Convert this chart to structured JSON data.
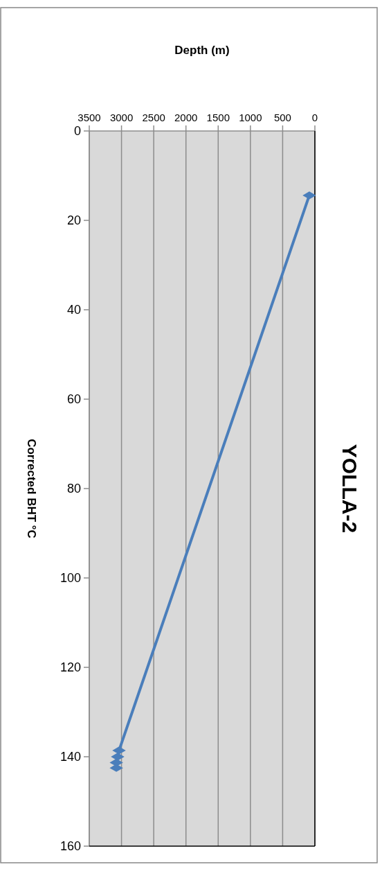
{
  "chart_data": {
    "type": "line",
    "title": "YOLLA-2",
    "xlabel": "Depth (m)",
    "ylabel": "Corrected BHT °C",
    "x": [
      86,
      3038,
      3060,
      3080,
      3080
    ],
    "series": [
      {
        "color": "#4a7ebb",
        "values": [
          14.4,
          138.6,
          140,
          141.3,
          142.5
        ]
      }
    ],
    "xlim": [
      3500,
      0
    ],
    "xticks": [
      3500,
      3000,
      2500,
      2000,
      1500,
      1000,
      500,
      0
    ],
    "ylim": [
      160,
      0
    ],
    "yticks": [
      0,
      20,
      40,
      60,
      80,
      100,
      120,
      140,
      160
    ],
    "grid": "x",
    "marker": "diamond",
    "line_style": "solid"
  }
}
